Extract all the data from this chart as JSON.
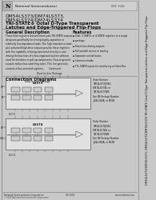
{
  "bg_color": "#c8c8c8",
  "page_bg": "#e8e8e8",
  "inner_bg": "#f0f0f0",
  "text_color": "#222222",
  "company": "National Semiconductor",
  "logo_text": "N",
  "nsc_code": "NSC 1001",
  "title_lines": [
    "DM54LS373/DM74LS373,",
    "DM54LS374/DM74LS374",
    "TRI-STATE® Octal D-Type Transparent",
    "Latches and Edge-Triggered Flip-Flops"
  ],
  "section1_title": "General Description",
  "section1_text": "These 8-bit registers feature totem-pole TRI-STATE outputs\ndesigned specifically for driving highly-capacitive or\nrelatively low-impedance loads. The high-impedance state plus\npolarized high-drive outputs provide these registers with\nthe capability of being connected directly to and driving the\nbus lines of a bus-organized system without need for interface\nor pull-up components. Flow-to-ground outputs reduce\nbus switching noise. This line generally consists\nof bus-oriented registers. Continued",
  "section2_title": "Features",
  "section2_items": [
    "8-bit, 3-STATE, or 4-STATE registers in a single",
    "package",
    "Direct bus driving outputs",
    "Full parallel access to loading",
    "Separate control buses",
    "Common enable",
    "TTL-STATE inputs for interfacing on Data Bus"
  ],
  "connection_title": "Connection Diagrams",
  "diag1_title": "Dual-In-Line Package",
  "diag1_name": "LS373",
  "diag2_name": "LS374",
  "order1": "Order Number\nDM54LS373J/883,\nDM74LS373N, or\nDM74LS373WM\nSee NS Package Number\nJ20A, N20A, or M20B",
  "order2": "Order Number\nDM54LS374J/883,\nDM74LS374N, or\nDM74LS374WM\nSee NS Package Number\nJ20A, N20A, or M20B",
  "side_label": "DM54LS373/DM74LS373, DM54LS374/DM74LS374 TRI-STATE Octal D-Type Transparent Latches and Edge-Triggered Flip-Flops",
  "footer_l": "National Semiconductor Corporation",
  "footer_r": "www.national.com",
  "foot_mid": "DS 1001",
  "foot_l2": "© 2000 National Semiconductor Corporation",
  "ic_outline": "#555555",
  "ic_fill": "#d8d8d8",
  "page_border": "#888888"
}
